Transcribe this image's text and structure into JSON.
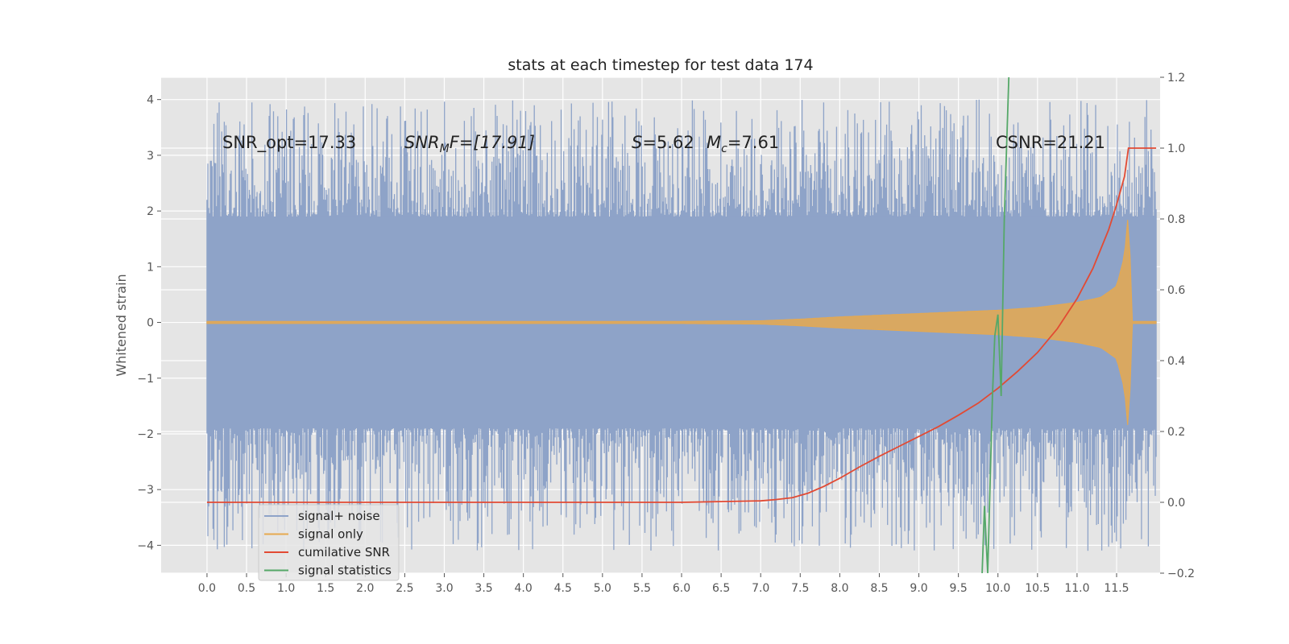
{
  "chart_data": {
    "type": "line",
    "title": "stats at each timestep for test data 174",
    "ylabel": "Whitened strain",
    "xlabel": "",
    "xlim": [
      -0.58,
      12.05
    ],
    "ylim": [
      -4.5,
      4.4
    ],
    "y2lim": [
      -0.2,
      1.2
    ],
    "grid": true,
    "x_ticks": [
      "0.0",
      "0.5",
      "1.0",
      "1.5",
      "2.0",
      "2.5",
      "3.0",
      "3.5",
      "4.0",
      "4.5",
      "5.0",
      "5.5",
      "6.0",
      "6.5",
      "7.0",
      "7.5",
      "8.0",
      "8.5",
      "9.0",
      "9.5",
      "10.0",
      "10.5",
      "11.0",
      "11.5"
    ],
    "y_ticks": [
      "4",
      "3",
      "2",
      "1",
      "0",
      "−1",
      "−2",
      "−3",
      "−4"
    ],
    "y2_ticks": [
      "1.2",
      "1.0",
      "0.8",
      "0.6",
      "0.4",
      "0.2",
      "0.0",
      "−0.2"
    ],
    "annotations": {
      "snr_opt": "SNR_opt=17.33",
      "snr_mf_main": "SNR",
      "snr_mf_sub": "M",
      "snr_mf_rest": "F=[17.91]",
      "s_main": "S",
      "s_rest": "=5.62",
      "mc_main": "M",
      "mc_sub": "c",
      "mc_rest": "=7.61",
      "csnr": "CSNR=21.21"
    },
    "legend_position": "lower-left",
    "series": [
      {
        "name": "signal+ noise",
        "color": "#8ea3c8",
        "axis": "left",
        "x_range": [
          0.0,
          12.0
        ],
        "band_upper": 1.9,
        "band_lower": -1.9,
        "peak_upper_max": 4.0,
        "peak_lower_min": -4.1
      },
      {
        "name": "signal only",
        "color": "#e6a94f",
        "axis": "left",
        "amplitude_curve": {
          "x": [
            0.0,
            6.0,
            7.0,
            7.5,
            8.0,
            8.5,
            9.0,
            9.5,
            10.0,
            10.5,
            11.0,
            11.3,
            11.5,
            11.6,
            11.65,
            11.7,
            12.0
          ],
          "y": [
            0.02,
            0.02,
            0.03,
            0.06,
            0.1,
            0.13,
            0.16,
            0.19,
            0.22,
            0.27,
            0.36,
            0.45,
            0.65,
            1.2,
            2.0,
            0.02,
            0.02
          ]
        }
      },
      {
        "name": "cumilative SNR",
        "color": "#e24a33",
        "axis": "right",
        "x": [
          0.0,
          2.0,
          4.0,
          6.0,
          6.5,
          7.0,
          7.2,
          7.4,
          7.6,
          7.8,
          8.0,
          8.25,
          8.5,
          8.75,
          9.0,
          9.25,
          9.5,
          9.75,
          10.0,
          10.25,
          10.5,
          10.75,
          11.0,
          11.2,
          11.4,
          11.5,
          11.6,
          11.65,
          11.7,
          11.8,
          11.9,
          12.0
        ],
        "y": [
          0.0,
          0.0,
          0.0,
          0.0,
          0.002,
          0.004,
          0.008,
          0.013,
          0.026,
          0.045,
          0.068,
          0.1,
          0.13,
          0.158,
          0.186,
          0.214,
          0.246,
          0.28,
          0.322,
          0.37,
          0.423,
          0.49,
          0.575,
          0.66,
          0.77,
          0.84,
          0.92,
          1.0,
          1.0,
          1.0,
          1.0,
          1.0
        ]
      },
      {
        "name": "signal statistics",
        "color": "#55a868",
        "axis": "right",
        "x": [
          9.8,
          9.83,
          9.87,
          9.93,
          9.96,
          10.0,
          10.04,
          10.08,
          10.14
        ],
        "y": [
          -0.2,
          -0.01,
          -0.2,
          0.3,
          0.47,
          0.53,
          0.3,
          0.8,
          1.22
        ]
      }
    ]
  }
}
